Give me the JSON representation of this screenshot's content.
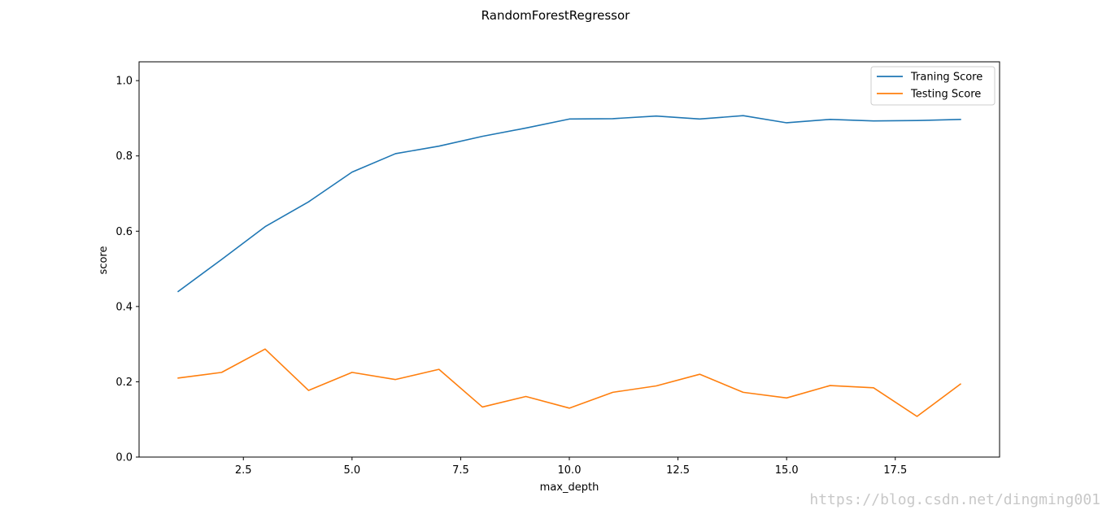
{
  "chart_data": {
    "type": "line",
    "title": "RandomForestRegressor",
    "xlabel": "max_depth",
    "ylabel": "score",
    "xlim": [
      0.1,
      19.9
    ],
    "ylim": [
      0.0,
      1.05
    ],
    "x_ticks": [
      "2.5",
      "5.0",
      "7.5",
      "10.0",
      "12.5",
      "15.0",
      "17.5"
    ],
    "y_ticks": [
      "0.0",
      "0.2",
      "0.4",
      "0.6",
      "0.8",
      "1.0"
    ],
    "x": [
      1,
      2,
      3,
      4,
      5,
      6,
      7,
      8,
      9,
      10,
      11,
      12,
      13,
      14,
      15,
      16,
      17,
      18,
      19
    ],
    "series": [
      {
        "name": "Traning Score",
        "color": "#1f77b4",
        "values": [
          0.44,
          0.525,
          0.612,
          0.678,
          0.757,
          0.806,
          0.826,
          0.852,
          0.874,
          0.898,
          0.899,
          0.906,
          0.898,
          0.907,
          0.888,
          0.897,
          0.893,
          0.894,
          0.897
        ]
      },
      {
        "name": "Testing Score",
        "color": "#ff7f0e",
        "values": [
          0.21,
          0.225,
          0.287,
          0.177,
          0.225,
          0.206,
          0.233,
          0.133,
          0.161,
          0.13,
          0.172,
          0.189,
          0.22,
          0.172,
          0.157,
          0.19,
          0.184,
          0.108,
          0.194
        ]
      }
    ],
    "grid": false,
    "legend_position": "top-right"
  },
  "watermark": "https://blog.csdn.net/dingming001"
}
